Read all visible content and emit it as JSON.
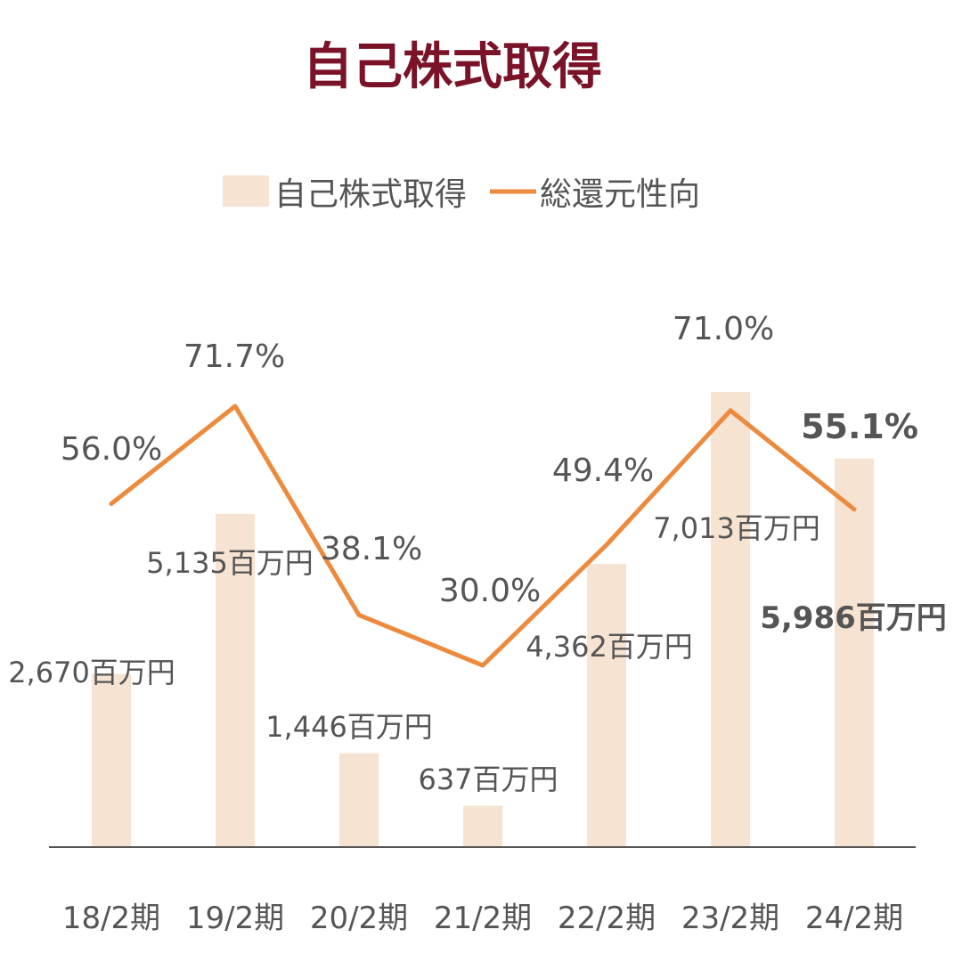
{
  "chart_data": {
    "type": "bar",
    "title": "自己株式取得",
    "categories": [
      "18/2期",
      "19/2期",
      "20/2期",
      "21/2期",
      "22/2期",
      "23/2期",
      "24/2期"
    ],
    "series": [
      {
        "name": "自己株式取得",
        "type": "bar",
        "axis": "left",
        "values": [
          2670,
          5135,
          1446,
          637,
          4362,
          7013,
          5986
        ],
        "labels": [
          "2,670百万円",
          "5,135百万円",
          "1,446百万円",
          "637百万円",
          "4,362百万円",
          "7,013百万円",
          "5,986百万円"
        ],
        "color": "#f6e3d1"
      },
      {
        "name": "総還元性向",
        "type": "line",
        "axis": "right",
        "values": [
          56.0,
          71.7,
          38.1,
          30.0,
          49.4,
          71.0,
          55.1
        ],
        "labels": [
          "56.0%",
          "71.7%",
          "38.1%",
          "30.0%",
          "49.4%",
          "71.0%",
          "55.1%"
        ],
        "color": "#ec8a3e"
      }
    ],
    "ylim_left": [
      0,
      7500
    ],
    "ylim_right": [
      0,
      100
    ],
    "grid": false,
    "legend": "top-center",
    "highlight_index": 6,
    "colors": {
      "title": "#7a1228",
      "label": "#555555",
      "axis": "#555555"
    }
  }
}
